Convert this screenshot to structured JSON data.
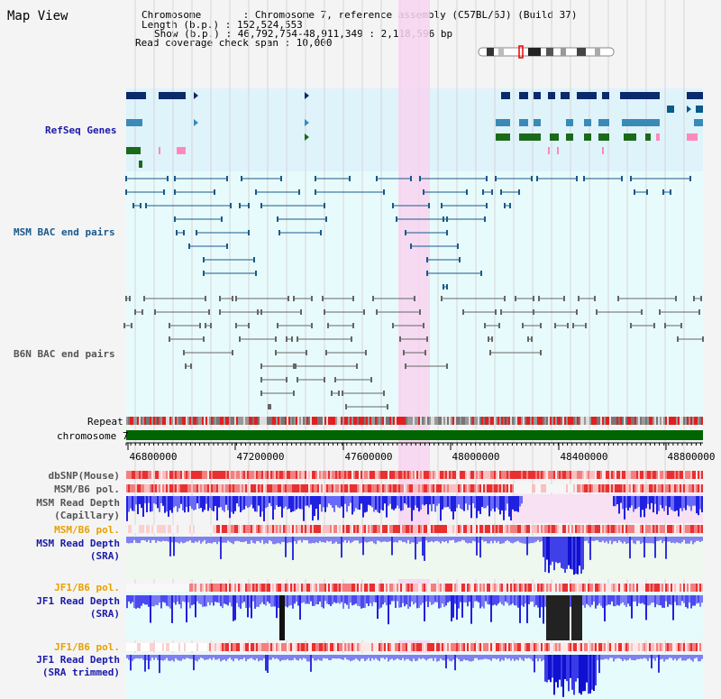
{
  "header": {
    "title": "Map View",
    "chromosome": "Chromosome       : Chromosome 7, reference assembly (C57BL/6J) (Build 37)",
    "length": "Length (b.p.) : 152,524,553",
    "show": "Show (b.p.) : 46,792,754-48,911,349 : 2,118,596 bp",
    "read_coverage": "Read coverage check span : 10,000"
  },
  "tracks": {
    "refseq": "RefSeq Genes",
    "msm_bac": "MSM BAC end pairs",
    "b6n_bac": "B6N BAC end pairs",
    "repeat": "Repeat",
    "chromosome": "chromosome 7",
    "dbsnp": "dbSNP(Mouse)",
    "msm_b6_pol": "MSM/B6 pol.",
    "msm_depth_cap_1": "MSM Read Depth",
    "msm_depth_cap_2": "(Capillary)",
    "msm_b6_pol2": "MSM/B6 pol.",
    "msm_depth_sra_1": "MSM Read Depth",
    "msm_depth_sra_2": "(SRA)",
    "jf1_b6_pol": "JF1/B6 pol.",
    "jf1_depth_sra_1": "JF1 Read Depth",
    "jf1_depth_sra_2": "(SRA)",
    "jf1_b6_pol2": "JF1/B6 pol.",
    "jf1_depth_trim_1": "JF1 Read Depth",
    "jf1_depth_trim_2": "(SRA trimmed)"
  },
  "axis": {
    "ticks": [
      "46800000",
      "47200000",
      "47600000",
      "48000000",
      "48400000",
      "48800000"
    ]
  },
  "colors": {
    "refseq_bg": "#dff3fb",
    "msm_bg": "#e8fbfc",
    "highlight": "#f7d3f0",
    "chromosome_bar": "#006400",
    "label_blue": "#1a1aa8",
    "label_orange": "#e8a000",
    "label_gray": "#555555",
    "depth_blue": "#2020e0"
  }
}
